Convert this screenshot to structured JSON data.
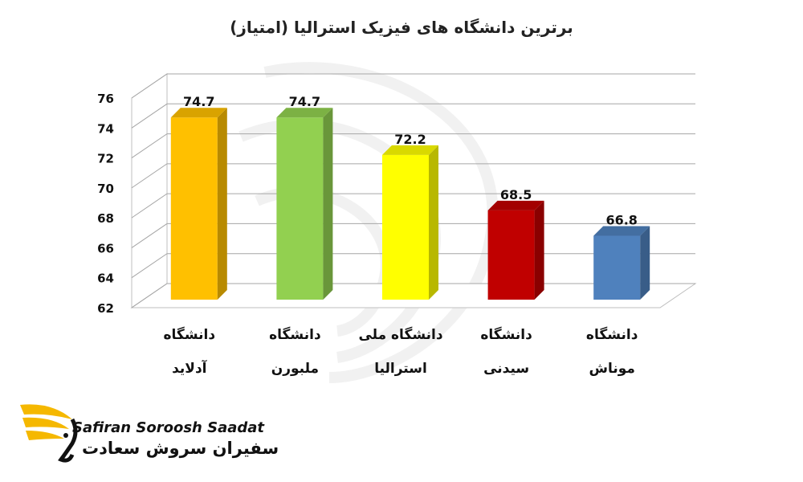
{
  "chart_data": {
    "type": "bar",
    "title": "برترین دانشگاه های فیزیک استرالیا (امتیاز)",
    "categories": [
      [
        "دانشگاه",
        "آدلاید"
      ],
      [
        "دانشگاه",
        "ملبورن"
      ],
      [
        "دانشگاه ملی",
        "استرالیا"
      ],
      [
        "دانشگاه",
        "سیدنی"
      ],
      [
        "دانشگاه",
        "موناش"
      ]
    ],
    "values": [
      74.7,
      74.7,
      72.2,
      68.5,
      66.8
    ],
    "value_labels": [
      "74.7",
      "74.7",
      "72.2",
      "68.5",
      "66.8"
    ],
    "colors": [
      "#FFC000",
      "#92D050",
      "#FFFF00",
      "#C00000",
      "#4F81BD"
    ],
    "ylim": [
      62,
      76
    ],
    "yticks": [
      62,
      64,
      66,
      68,
      70,
      72,
      74,
      76
    ],
    "grid": true,
    "style": "3d-column"
  },
  "logo": {
    "name_en": "Safiran Soroosh Saadat",
    "name_fa": "سفیران سروش سعادت",
    "accent": "#F5B800"
  }
}
